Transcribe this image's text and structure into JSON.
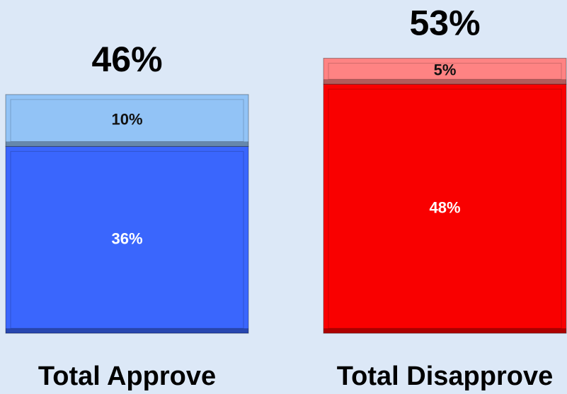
{
  "chart_data": {
    "type": "stacked-bar",
    "categories": [
      "Total Approve",
      "Total Disapprove"
    ],
    "totals": [
      46,
      53
    ],
    "total_labels": [
      "46%",
      "53%"
    ],
    "series": [
      {
        "colors": [
          "#3a66fd",
          "#f90000"
        ],
        "values": [
          36,
          48
        ],
        "value_labels": [
          "36%",
          "48%"
        ],
        "label_color": "#ffffff"
      },
      {
        "colors": [
          "#92c3f6",
          "#ff8383"
        ],
        "values": [
          10,
          5
        ],
        "value_labels": [
          "10%",
          "5%"
        ],
        "label_color": "#111111"
      }
    ]
  }
}
